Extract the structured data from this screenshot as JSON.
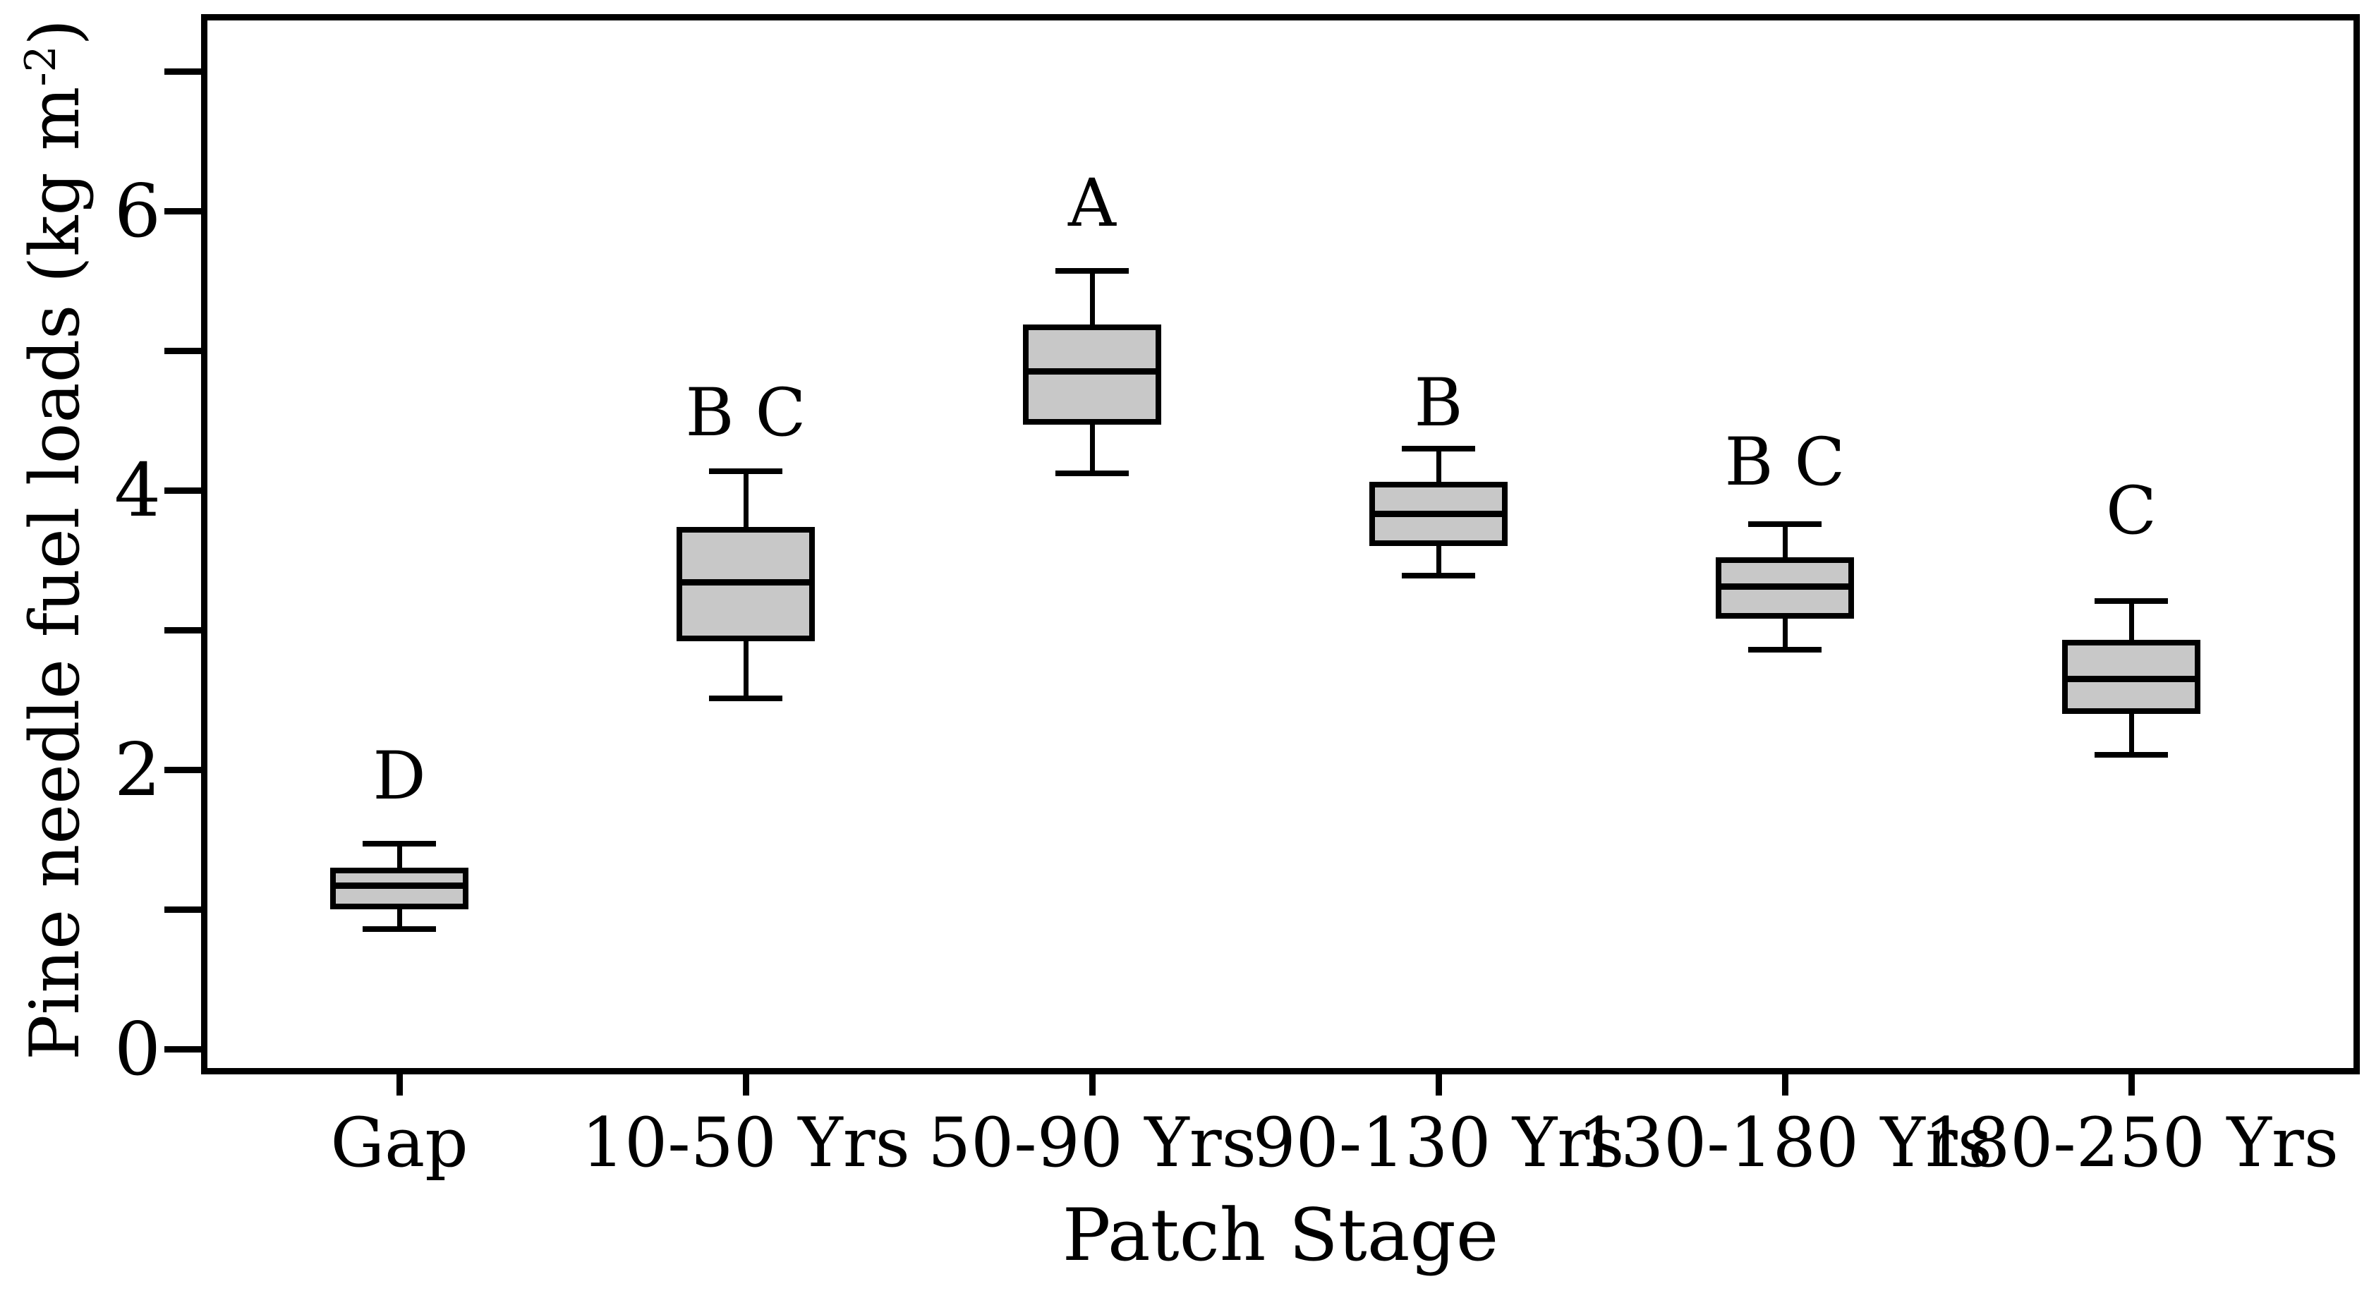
{
  "colors": {
    "background": "#ffffff",
    "box_fill": "#c8c8c8",
    "line": "#000000"
  },
  "chart_data": {
    "type": "box",
    "title": "",
    "xlabel": "Patch Stage",
    "ylabel": "Pine needle fuel loads (kg m-2)",
    "ylabel_parts": {
      "pre": "Pine needle fuel loads (kg m",
      "sup": "-2",
      "post": ")"
    },
    "ylim": [
      -0.18,
      7.41
    ],
    "yticks_major": [
      0,
      2,
      4,
      6
    ],
    "yticks_minor": [
      1,
      3,
      5,
      7
    ],
    "ytick_labels": [
      "0",
      "2",
      "4",
      "6"
    ],
    "grid": "off",
    "legend": "none",
    "categories": [
      "Gap",
      "10-50 Yrs",
      "50-90 Yrs",
      "90-130 Yrs",
      "130-180 Yrs",
      "180-250 Yrs"
    ],
    "series": [
      {
        "category": "Gap",
        "letter": "D",
        "whisker_low": 0.86,
        "q1": 1.0,
        "median": 1.17,
        "q3": 1.3,
        "whisker_high": 1.47,
        "letter_y": 1.95
      },
      {
        "category": "10-50 Yrs",
        "letter": "B C",
        "whisker_low": 2.51,
        "q1": 2.92,
        "median": 3.34,
        "q3": 3.74,
        "whisker_high": 4.14,
        "letter_y": 4.55
      },
      {
        "category": "50-90 Yrs",
        "letter": "A",
        "whisker_low": 4.12,
        "q1": 4.47,
        "median": 4.85,
        "q3": 5.19,
        "whisker_high": 5.57,
        "letter_y": 6.05
      },
      {
        "category": "90-130 Yrs",
        "letter": "B",
        "whisker_low": 3.39,
        "q1": 3.6,
        "median": 3.83,
        "q3": 4.06,
        "whisker_high": 4.3,
        "letter_y": 4.62
      },
      {
        "category": "130-180 Yrs",
        "letter": "B C",
        "whisker_low": 2.86,
        "q1": 3.08,
        "median": 3.31,
        "q3": 3.52,
        "whisker_high": 3.76,
        "letter_y": 4.2
      },
      {
        "category": "180-250 Yrs",
        "letter": "C",
        "whisker_low": 2.11,
        "q1": 2.4,
        "median": 2.65,
        "q3": 2.93,
        "whisker_high": 3.21,
        "letter_y": 3.85
      }
    ]
  }
}
